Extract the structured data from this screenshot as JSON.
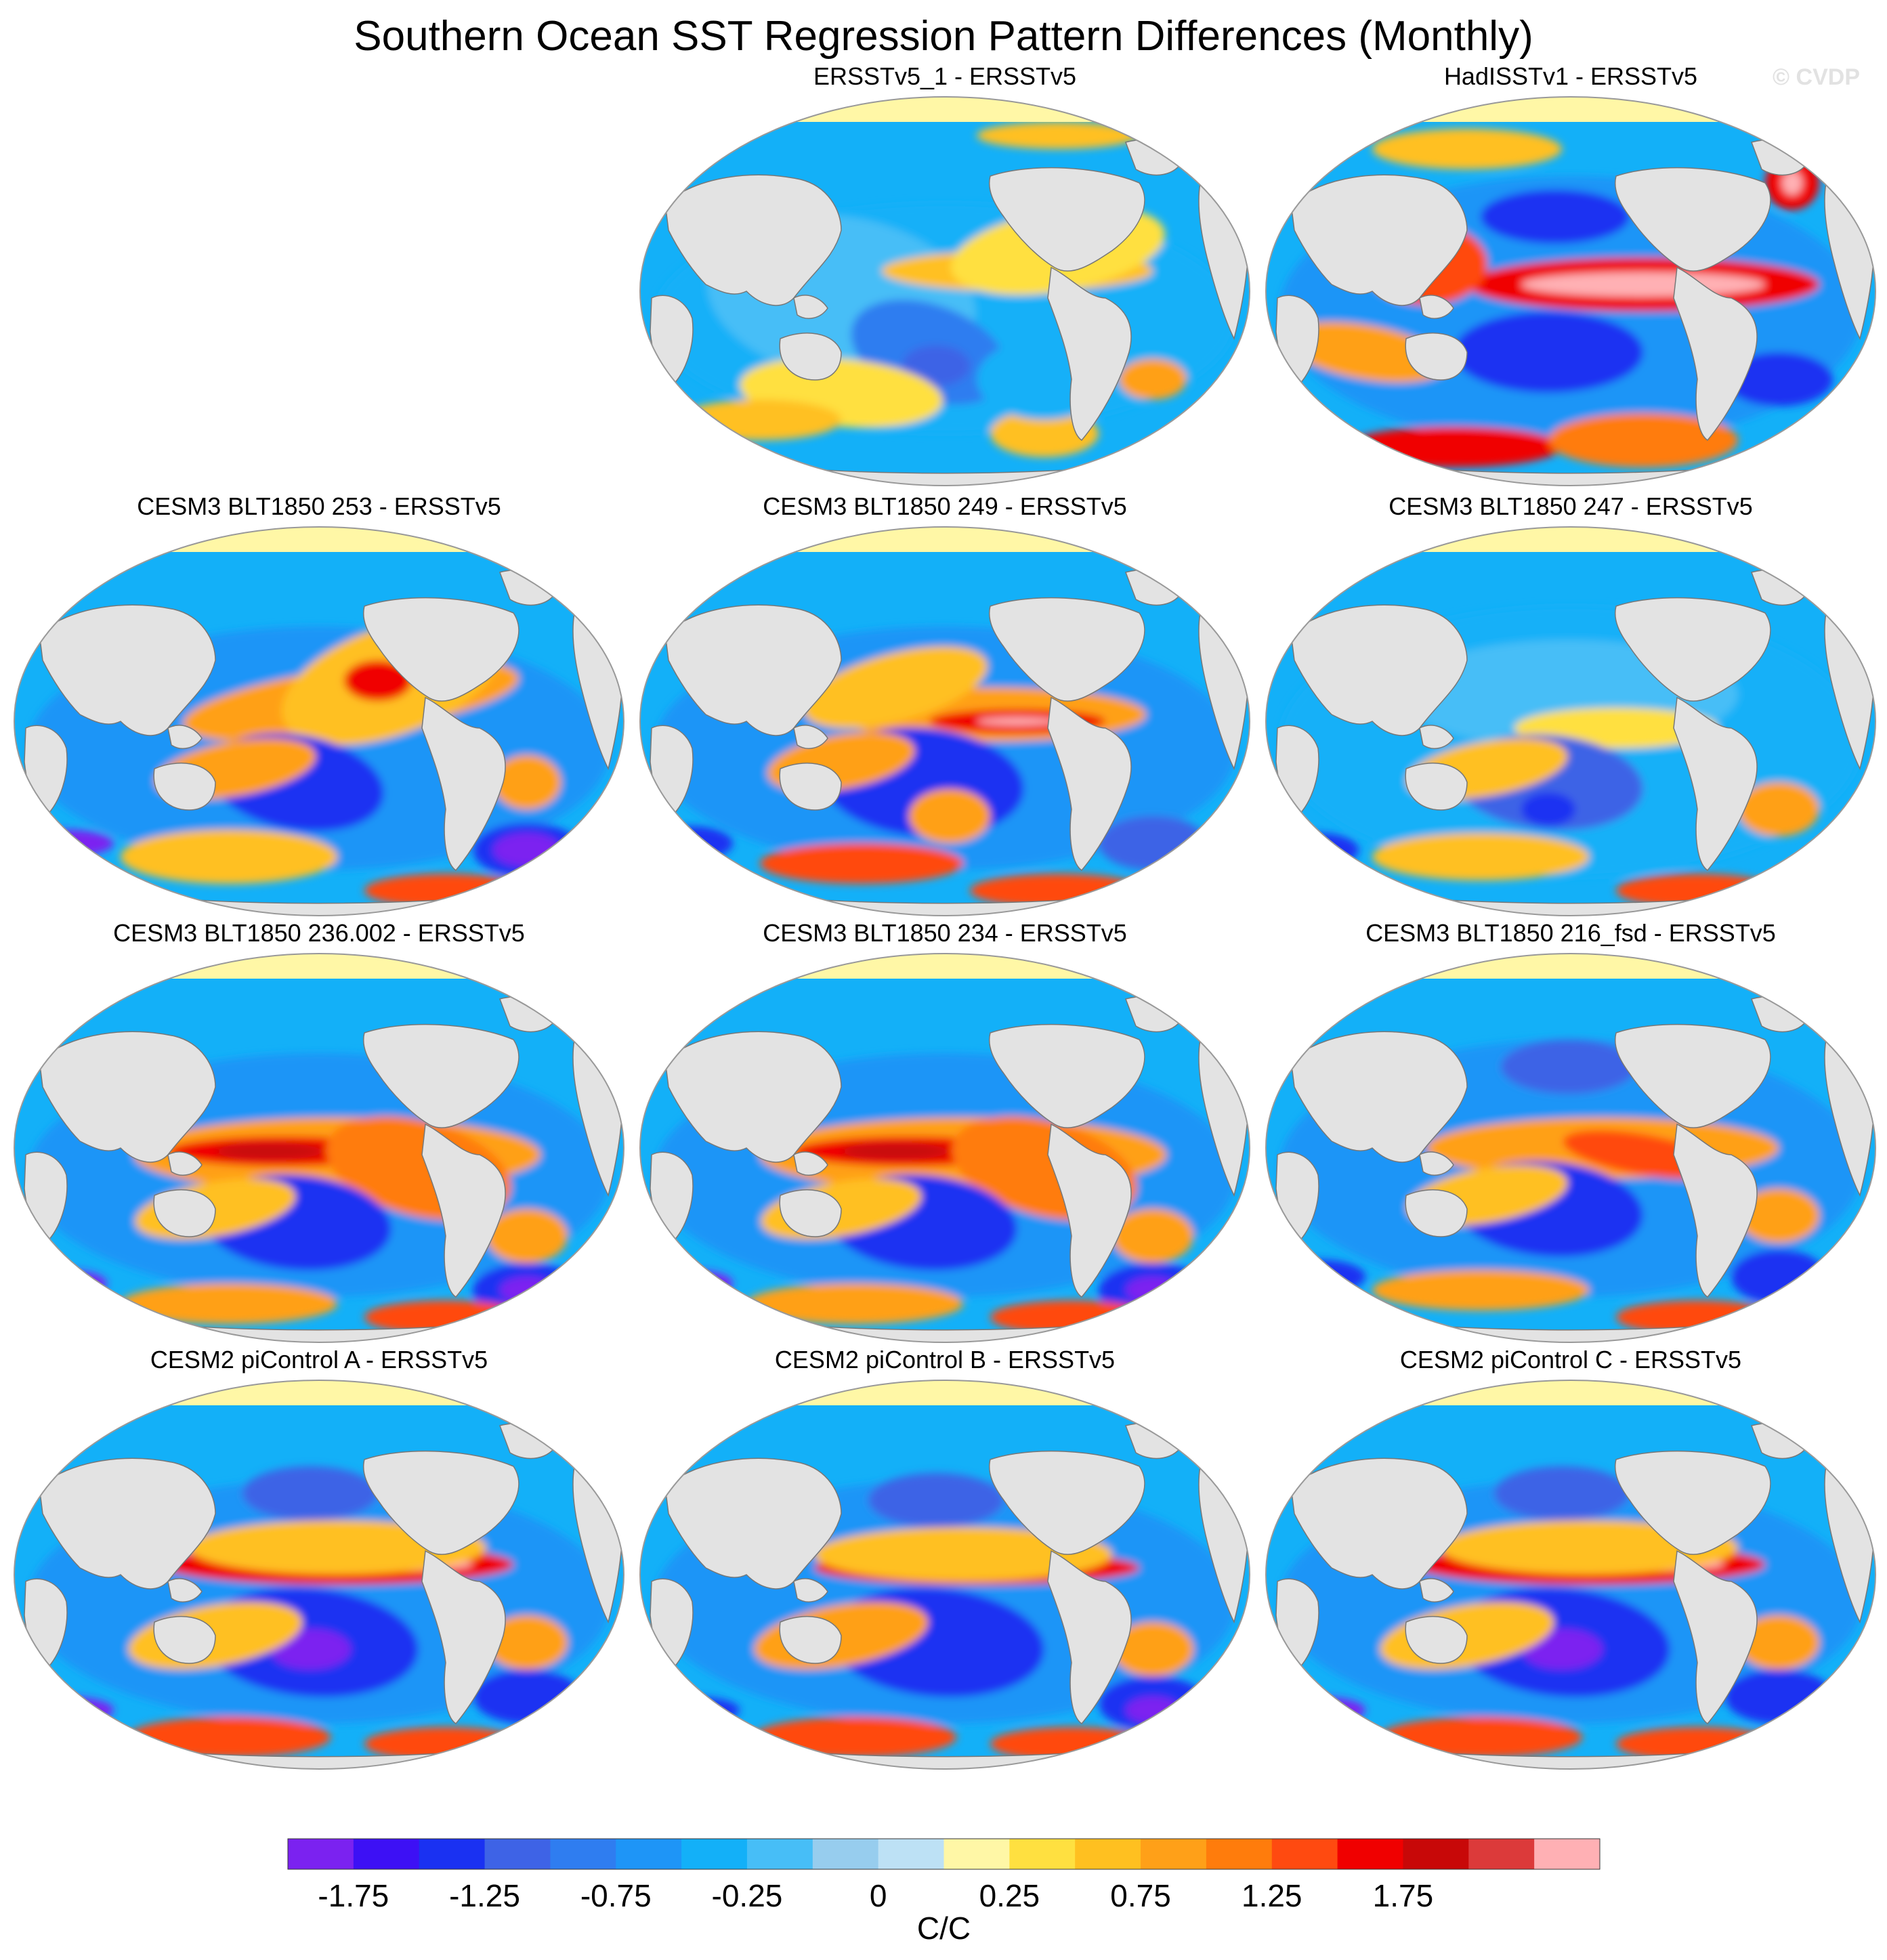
{
  "title": "Southern Ocean SST Regression Pattern Differences (Monthly)",
  "watermark": "© CVDP",
  "panels": [
    {
      "title": "ERSSTv5_1 - ERSSTv5",
      "row": 0,
      "col": 1,
      "variant": "weak"
    },
    {
      "title": "HadISSTv1 - ERSSTv5",
      "row": 0,
      "col": 2,
      "variant": "had"
    },
    {
      "title": "CESM3 BLT1850 253 - ERSSTv5",
      "row": 1,
      "col": 0,
      "variant": "cesm3a"
    },
    {
      "title": "CESM3 BLT1850 249 - ERSSTv5",
      "row": 1,
      "col": 1,
      "variant": "cesm3b"
    },
    {
      "title": "CESM3 BLT1850 247 - ERSSTv5",
      "row": 1,
      "col": 2,
      "variant": "cesm3c"
    },
    {
      "title": "CESM3 BLT1850 236.002 - ERSSTv5",
      "row": 2,
      "col": 0,
      "variant": "cesm3d"
    },
    {
      "title": "CESM3 BLT1850 234 - ERSSTv5",
      "row": 2,
      "col": 1,
      "variant": "cesm3d"
    },
    {
      "title": "CESM3 BLT1850 216_fsd - ERSSTv5",
      "row": 2,
      "col": 2,
      "variant": "cesm3e"
    },
    {
      "title": "CESM2 piControl A - ERSSTv5",
      "row": 3,
      "col": 0,
      "variant": "cesm2"
    },
    {
      "title": "CESM2 piControl B - ERSSTv5",
      "row": 3,
      "col": 1,
      "variant": "cesm2b"
    },
    {
      "title": "CESM2 piControl C - ERSSTv5",
      "row": 3,
      "col": 2,
      "variant": "cesm2"
    }
  ],
  "colorbar": {
    "colors": [
      "#7b22f0",
      "#3d10f5",
      "#1a31f2",
      "#3e63e6",
      "#2f7df0",
      "#1e95f7",
      "#13b0f8",
      "#47bef7",
      "#97cdee",
      "#bde1f5",
      "#fff7a6",
      "#ffe040",
      "#ffc020",
      "#ffa018",
      "#ff7c0c",
      "#ff4a10",
      "#f00000",
      "#c80808",
      "#dc3a3a",
      "#ffb0b4"
    ],
    "tick_labels": [
      "-1.75",
      "-1.25",
      "-0.75",
      "-0.25",
      "0",
      "0.25",
      "0.75",
      "1.25",
      "1.75"
    ],
    "units": "C/C"
  }
}
